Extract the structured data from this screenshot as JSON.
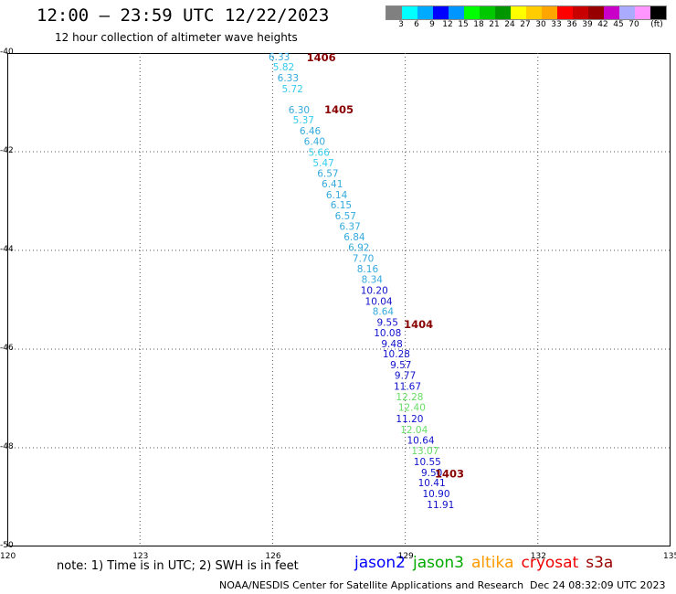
{
  "header": {
    "title": "12:00 – 23:59 UTC 12/22/2023",
    "subtitle": "12 hour collection of altimeter wave heights"
  },
  "legend": {
    "colors": [
      "#808080",
      "#00ffff",
      "#00aaff",
      "#0000ff",
      "#0096ff",
      "#00ff00",
      "#00c800",
      "#009600",
      "#ffff00",
      "#ffcc00",
      "#ffa500",
      "#ff0000",
      "#c80000",
      "#960000",
      "#c800c8",
      "#aaaaff",
      "#ff96ff",
      "#000000"
    ],
    "labels": [
      "3",
      "6",
      "9",
      "12",
      "15",
      "18",
      "21",
      "24",
      "27",
      "30",
      "33",
      "36",
      "39",
      "42",
      "45",
      "70",
      "(ft)"
    ]
  },
  "map": {
    "lat_ticks": [
      "-40",
      "-42",
      "-44",
      "-46",
      "-48",
      "-50"
    ],
    "lon_ticks": [
      "120",
      "123",
      "126",
      "129",
      "132",
      "135"
    ],
    "xlim": [
      120,
      135
    ],
    "ylim": [
      -50,
      -40
    ],
    "track_labels": [
      {
        "text": "1406",
        "lon": 127.1,
        "lat": -40.17
      },
      {
        "text": "1405",
        "lon": 127.5,
        "lat": -41.22
      },
      {
        "text": "1404",
        "lon": 129.3,
        "lat": -45.57
      },
      {
        "text": "1403",
        "lon": 130.0,
        "lat": -48.6
      }
    ],
    "points": [
      {
        "v": "6.33",
        "lon": 126.15,
        "lat": -40.15,
        "c": "#33aadd"
      },
      {
        "v": "5.82",
        "lon": 126.25,
        "lat": -40.35,
        "c": "#33ccee"
      },
      {
        "v": "6.33",
        "lon": 126.35,
        "lat": -40.57,
        "c": "#33aadd"
      },
      {
        "v": "5.72",
        "lon": 126.45,
        "lat": -40.8,
        "c": "#33ccee"
      },
      {
        "v": "6.30",
        "lon": 126.6,
        "lat": -41.22,
        "c": "#33aadd"
      },
      {
        "v": "5.37",
        "lon": 126.7,
        "lat": -41.43,
        "c": "#33ccee"
      },
      {
        "v": "6.46",
        "lon": 126.85,
        "lat": -41.65,
        "c": "#33aadd"
      },
      {
        "v": "6.40",
        "lon": 126.95,
        "lat": -41.86,
        "c": "#33aadd"
      },
      {
        "v": "5.66",
        "lon": 127.05,
        "lat": -42.08,
        "c": "#33ccee"
      },
      {
        "v": "5.47",
        "lon": 127.15,
        "lat": -42.3,
        "c": "#33ccee"
      },
      {
        "v": "6.57",
        "lon": 127.25,
        "lat": -42.51,
        "c": "#33aadd"
      },
      {
        "v": "6.41",
        "lon": 127.35,
        "lat": -42.72,
        "c": "#33aadd"
      },
      {
        "v": "6.14",
        "lon": 127.45,
        "lat": -42.94,
        "c": "#33aadd"
      },
      {
        "v": "6.15",
        "lon": 127.55,
        "lat": -43.15,
        "c": "#33aadd"
      },
      {
        "v": "6.57",
        "lon": 127.65,
        "lat": -43.37,
        "c": "#33aadd"
      },
      {
        "v": "6.37",
        "lon": 127.75,
        "lat": -43.58,
        "c": "#33aadd"
      },
      {
        "v": "6.84",
        "lon": 127.85,
        "lat": -43.8,
        "c": "#33aadd"
      },
      {
        "v": "6.92",
        "lon": 127.95,
        "lat": -44.01,
        "c": "#33aadd"
      },
      {
        "v": "7.70",
        "lon": 128.05,
        "lat": -44.23,
        "c": "#33aadd"
      },
      {
        "v": "8.16",
        "lon": 128.15,
        "lat": -44.44,
        "c": "#33aadd"
      },
      {
        "v": "8.34",
        "lon": 128.25,
        "lat": -44.66,
        "c": "#33aadd"
      },
      {
        "v": "10.20",
        "lon": 128.3,
        "lat": -44.88,
        "c": "#1111cc"
      },
      {
        "v": "10.04",
        "lon": 128.4,
        "lat": -45.1,
        "c": "#1111cc"
      },
      {
        "v": "8.64",
        "lon": 128.5,
        "lat": -45.31,
        "c": "#33aadd"
      },
      {
        "v": "9.55",
        "lon": 128.6,
        "lat": -45.53,
        "c": "#1111cc"
      },
      {
        "v": "10.08",
        "lon": 128.6,
        "lat": -45.74,
        "c": "#1111cc"
      },
      {
        "v": "9.48",
        "lon": 128.7,
        "lat": -45.96,
        "c": "#1111cc"
      },
      {
        "v": "10.28",
        "lon": 128.8,
        "lat": -46.17,
        "c": "#1111cc"
      },
      {
        "v": "9.57",
        "lon": 128.9,
        "lat": -46.39,
        "c": "#1111cc"
      },
      {
        "v": "9.77",
        "lon": 129.0,
        "lat": -46.6,
        "c": "#1111cc"
      },
      {
        "v": "11.67",
        "lon": 129.05,
        "lat": -46.82,
        "c": "#1111cc"
      },
      {
        "v": "12.28",
        "lon": 129.1,
        "lat": -47.04,
        "c": "#66dd66"
      },
      {
        "v": "12.40",
        "lon": 129.15,
        "lat": -47.25,
        "c": "#66dd66"
      },
      {
        "v": "11.20",
        "lon": 129.1,
        "lat": -47.48,
        "c": "#1111cc"
      },
      {
        "v": "12.04",
        "lon": 129.2,
        "lat": -47.7,
        "c": "#66dd66"
      },
      {
        "v": "10.64",
        "lon": 129.35,
        "lat": -47.92,
        "c": "#1111cc"
      },
      {
        "v": "13.07",
        "lon": 129.45,
        "lat": -48.13,
        "c": "#66dd66"
      },
      {
        "v": "10.55",
        "lon": 129.5,
        "lat": -48.35,
        "c": "#1111cc"
      },
      {
        "v": "9.50",
        "lon": 129.6,
        "lat": -48.57,
        "c": "#1111cc"
      },
      {
        "v": "10.41",
        "lon": 129.6,
        "lat": -48.78,
        "c": "#1111cc"
      },
      {
        "v": "10.90",
        "lon": 129.7,
        "lat": -49.0,
        "c": "#1111cc"
      },
      {
        "v": "11.91",
        "lon": 129.8,
        "lat": -49.22,
        "c": "#1111cc"
      }
    ]
  },
  "footer": {
    "note": "note: 1) Time is in UTC; 2) SWH is in feet",
    "credit": "NOAA/NESDIS Center for Satellite Applications and Research",
    "timestamp": "Dec 24 08:32:09 UTC 2023",
    "satellites": [
      {
        "name": "jason2",
        "color": "#0000ff"
      },
      {
        "name": "jason3",
        "color": "#00aa00"
      },
      {
        "name": "altika",
        "color": "#ff9900"
      },
      {
        "name": "cryosat",
        "color": "#ee0000"
      },
      {
        "name": "s3a",
        "color": "#990000"
      }
    ]
  }
}
